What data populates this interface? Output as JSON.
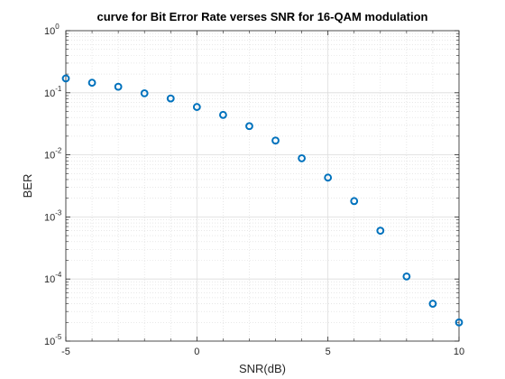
{
  "chart_data": {
    "type": "scatter",
    "title": "curve for Bit Error Rate verses  SNR for 16-QAM modulation",
    "xlabel": "SNR(dB)",
    "ylabel": "BER",
    "xlim": [
      -5,
      10
    ],
    "ylim": [
      1e-05,
      1
    ],
    "yscale": "log",
    "grid": true,
    "minor_grid": true,
    "x_ticks": [
      -5,
      0,
      5,
      10
    ],
    "x_tick_labels": [
      "-5",
      "0",
      "5",
      "10"
    ],
    "y_tick_labels": [
      {
        "base": "10",
        "exp": "-5"
      },
      {
        "base": "10",
        "exp": "-4"
      },
      {
        "base": "10",
        "exp": "-3"
      },
      {
        "base": "10",
        "exp": "-2"
      },
      {
        "base": "10",
        "exp": "-1"
      },
      {
        "base": "10",
        "exp": "0"
      }
    ],
    "marker": "circle",
    "marker_color": "#0072BD",
    "series": [
      {
        "x": [
          -5,
          -4,
          -3,
          -2,
          -1,
          0,
          1,
          2,
          3,
          4,
          5,
          6,
          7,
          8,
          9,
          10
        ],
        "values": [
          0.17,
          0.145,
          0.125,
          0.098,
          0.081,
          0.059,
          0.044,
          0.029,
          0.017,
          0.0088,
          0.0043,
          0.0018,
          0.0006,
          0.00011,
          4e-05,
          2e-05
        ]
      }
    ]
  }
}
